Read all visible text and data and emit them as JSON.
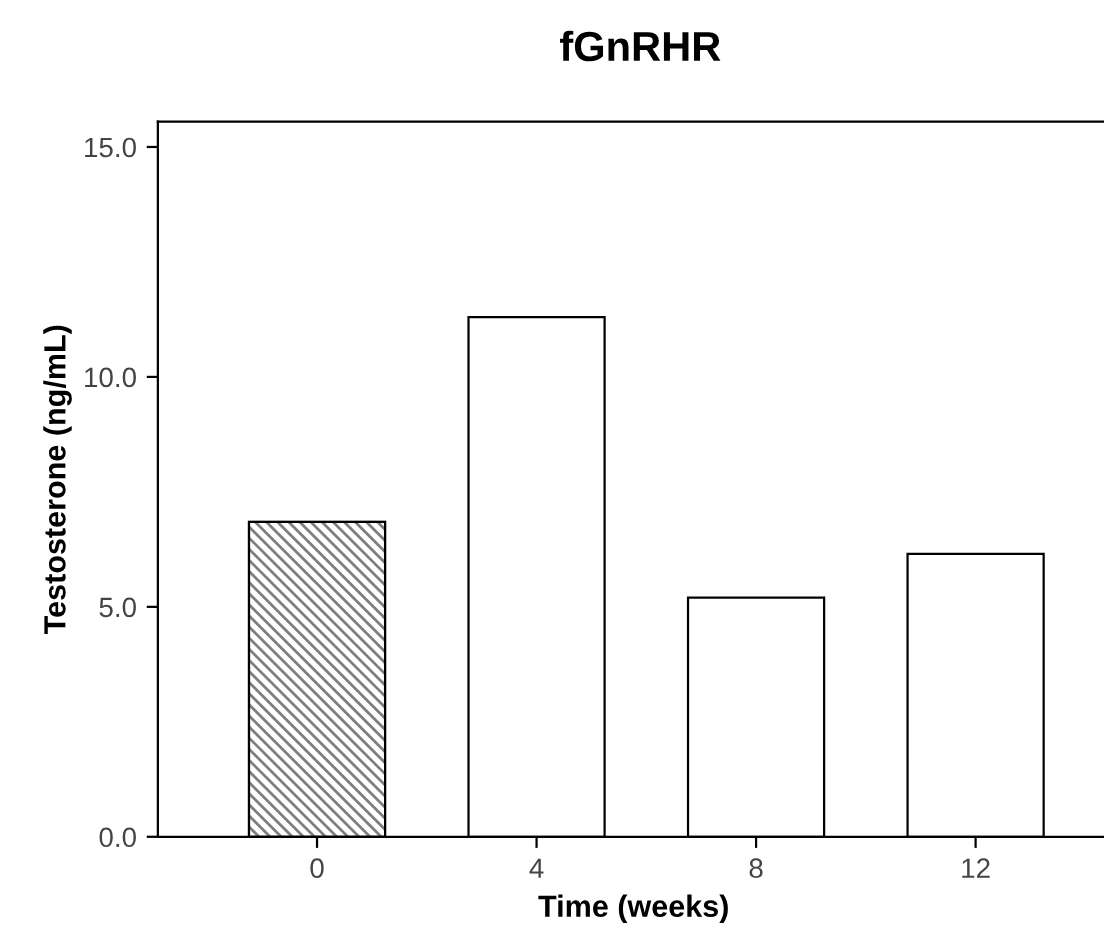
{
  "chart_data": {
    "type": "bar",
    "title": "fGnRHR",
    "xlabel": "Time (weeks)",
    "ylabel": "Testosterone (ng/mL)",
    "categories": [
      "0",
      "4",
      "8",
      "12"
    ],
    "values": [
      6.85,
      11.3,
      5.2,
      6.15
    ],
    "colors": [
      "#7f7f7f",
      "#ffffff",
      "#ffffff",
      "#ffffff"
    ],
    "ylim": [
      0,
      15.55
    ],
    "yticks": [
      {
        "value": 0,
        "label": "0.0"
      },
      {
        "value": 5,
        "label": "5.0"
      },
      {
        "value": 10,
        "label": "10.0"
      },
      {
        "value": 15,
        "label": "15.0"
      }
    ],
    "grid": false,
    "legend": false
  }
}
